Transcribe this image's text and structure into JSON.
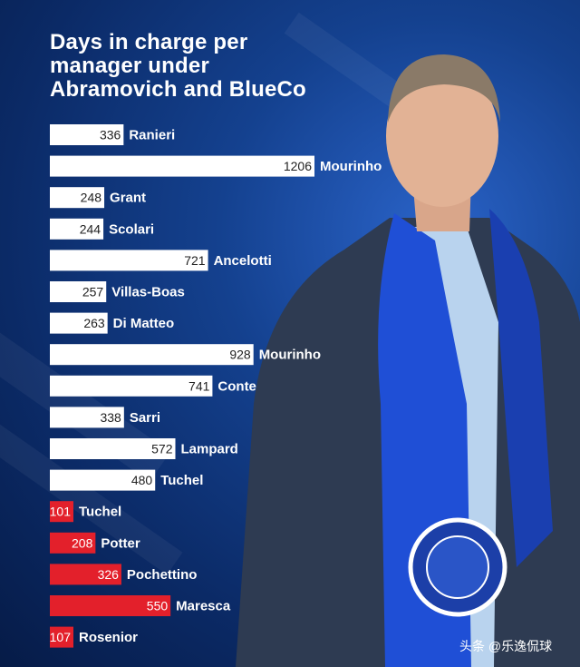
{
  "title_lines": [
    "Days in charge per",
    "manager under",
    "Abramovich and BlueCo"
  ],
  "watermark": "头条 @乐逸侃球",
  "colors": {
    "abramovich_bar": "#ffffff",
    "blueco_bar": "#e3202b",
    "abramovich_value_text": "#222222",
    "blueco_value_text": "#ffffff",
    "label_text": "#ffffff"
  },
  "chart_data": {
    "type": "bar",
    "orientation": "horizontal",
    "title": "Days in charge per manager under Abramovich and BlueCo",
    "categories": [
      "Ranieri",
      "Mourinho",
      "Grant",
      "Scolari",
      "Ancelotti",
      "Villas-Boas",
      "Di Matteo",
      "Mourinho",
      "Conte",
      "Sarri",
      "Lampard",
      "Tuchel",
      "Tuchel",
      "Potter",
      "Pochettino",
      "Maresca",
      "Rosenior"
    ],
    "values": [
      336,
      1206,
      248,
      244,
      721,
      257,
      263,
      928,
      741,
      338,
      572,
      480,
      101,
      208,
      326,
      550,
      107
    ],
    "bar_group": [
      "Abramovich",
      "Abramovich",
      "Abramovich",
      "Abramovich",
      "Abramovich",
      "Abramovich",
      "Abramovich",
      "Abramovich",
      "Abramovich",
      "Abramovich",
      "Abramovich",
      "Abramovich",
      "BlueCo",
      "BlueCo",
      "BlueCo",
      "BlueCo",
      "BlueCo"
    ],
    "data_labels": [
      "336",
      "1206",
      "248",
      "244",
      "721",
      "257",
      "263",
      "928",
      "741",
      "338",
      "572",
      "480",
      "101",
      "208",
      "326",
      "550",
      "107"
    ],
    "xlim": [
      0,
      1206
    ],
    "grid": false,
    "legend": "none"
  }
}
